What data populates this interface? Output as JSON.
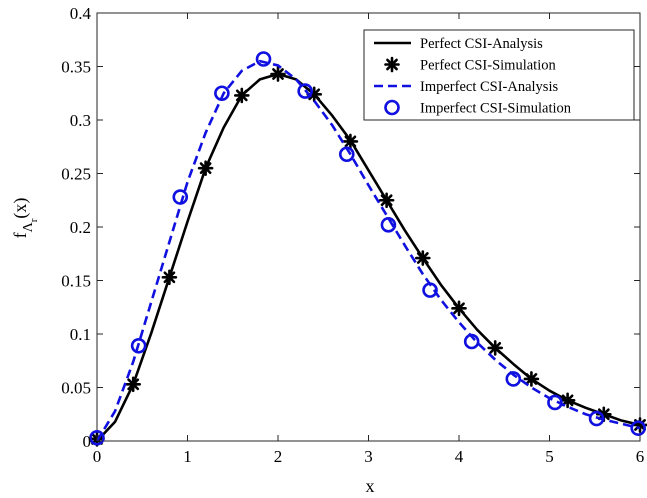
{
  "chart_data": {
    "type": "line",
    "title": "",
    "xlabel": "x",
    "ylabel": {
      "base": "f",
      "sub": "Λ",
      "subsub": "r",
      "arg": "(x)"
    },
    "xlim": [
      0,
      6
    ],
    "ylim": [
      0,
      0.4
    ],
    "xticks": [
      "0",
      "1",
      "2",
      "3",
      "4",
      "5",
      "6"
    ],
    "yticks": [
      "0",
      "0.05",
      "0.1",
      "0.15",
      "0.2",
      "0.25",
      "0.3",
      "0.35",
      "0.4"
    ],
    "grid": false,
    "legend": "top-right",
    "series": [
      {
        "name": "Perfect CSI-Analysis",
        "style": "solid-line",
        "color": "#000000",
        "x": [
          0,
          0.2,
          0.4,
          0.6,
          0.8,
          1.0,
          1.2,
          1.4,
          1.6,
          1.8,
          2.0,
          2.2,
          2.4,
          2.6,
          2.8,
          3.0,
          3.2,
          3.4,
          3.6,
          3.8,
          4.0,
          4.2,
          4.4,
          4.6,
          4.8,
          5.0,
          5.2,
          5.4,
          5.6,
          5.8,
          6.0
        ],
        "y": [
          0.0,
          0.018,
          0.053,
          0.101,
          0.153,
          0.205,
          0.255,
          0.293,
          0.323,
          0.338,
          0.343,
          0.338,
          0.324,
          0.304,
          0.281,
          0.253,
          0.225,
          0.197,
          0.171,
          0.146,
          0.124,
          0.104,
          0.087,
          0.072,
          0.058,
          0.047,
          0.038,
          0.031,
          0.025,
          0.019,
          0.015
        ]
      },
      {
        "name": "Perfect CSI-Simulation",
        "style": "star-marker",
        "color": "#000000",
        "x": [
          0,
          0.4,
          0.8,
          1.2,
          1.6,
          2.0,
          2.4,
          2.8,
          3.2,
          3.6,
          4.0,
          4.4,
          4.8,
          5.2,
          5.6,
          6.0
        ],
        "y": [
          0.002,
          0.053,
          0.153,
          0.255,
          0.323,
          0.343,
          0.324,
          0.28,
          0.225,
          0.171,
          0.124,
          0.087,
          0.058,
          0.038,
          0.025,
          0.015
        ]
      },
      {
        "name": "Imperfect CSI-Analysis",
        "style": "dashed-line",
        "color": "#1010e0",
        "x": [
          0,
          0.2,
          0.4,
          0.6,
          0.8,
          1.0,
          1.2,
          1.4,
          1.6,
          1.8,
          2.0,
          2.2,
          2.4,
          2.6,
          2.8,
          3.0,
          3.2,
          3.4,
          3.6,
          3.8,
          4.0,
          4.2,
          4.4,
          4.6,
          4.8,
          5.0,
          5.2,
          5.4,
          5.6,
          5.8,
          6.0
        ],
        "y": [
          0.0,
          0.028,
          0.074,
          0.13,
          0.186,
          0.242,
          0.288,
          0.325,
          0.346,
          0.355,
          0.351,
          0.338,
          0.318,
          0.295,
          0.268,
          0.239,
          0.211,
          0.183,
          0.156,
          0.132,
          0.111,
          0.092,
          0.076,
          0.062,
          0.05,
          0.04,
          0.032,
          0.025,
          0.02,
          0.016,
          0.012
        ]
      },
      {
        "name": "Imperfect CSI-Simulation",
        "style": "circle-marker",
        "color": "#1010e0",
        "x": [
          0,
          0.46,
          0.92,
          1.38,
          1.84,
          2.3,
          2.76,
          3.22,
          3.68,
          4.14,
          4.6,
          5.06,
          5.52,
          5.98
        ],
        "y": [
          0.003,
          0.089,
          0.228,
          0.325,
          0.357,
          0.327,
          0.268,
          0.202,
          0.141,
          0.093,
          0.058,
          0.036,
          0.021,
          0.012
        ]
      }
    ]
  }
}
